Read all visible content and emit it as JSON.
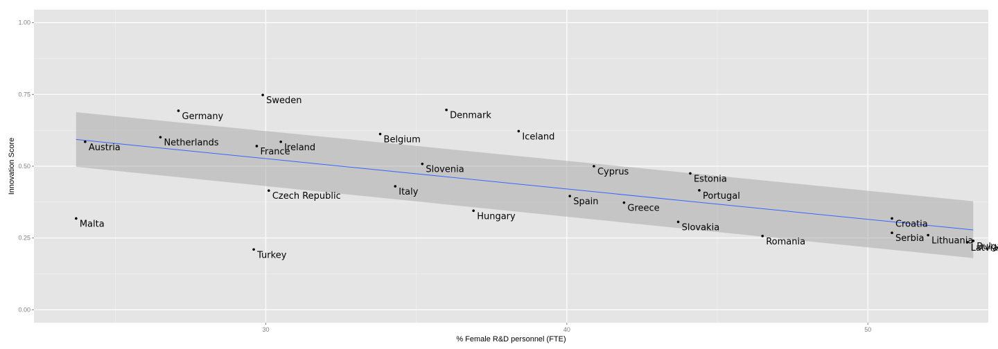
{
  "chart_data": {
    "type": "scatter",
    "xlabel": "% Female R&D personnel (FTE)",
    "ylabel": "Innovation Score",
    "xlim": [
      22.3,
      54.0
    ],
    "ylim": [
      -0.045,
      1.045
    ],
    "x_ticks": [
      30,
      40,
      50
    ],
    "y_ticks": [
      0.0,
      0.25,
      0.5,
      0.75,
      1.0
    ],
    "x_tick_labels": [
      "30",
      "40",
      "50"
    ],
    "y_tick_labels": [
      "0.00",
      "0.25",
      "0.50",
      "0.75",
      "1.00"
    ],
    "grid": true,
    "points": [
      {
        "label": "Sweden",
        "x": 29.9,
        "y": 0.748
      },
      {
        "label": "Germany",
        "x": 27.1,
        "y": 0.693
      },
      {
        "label": "Denmark",
        "x": 36.0,
        "y": 0.696
      },
      {
        "label": "Netherlands",
        "x": 26.5,
        "y": 0.601
      },
      {
        "label": "Belgium",
        "x": 33.8,
        "y": 0.612
      },
      {
        "label": "Iceland",
        "x": 38.4,
        "y": 0.622
      },
      {
        "label": "Austria",
        "x": 24.0,
        "y": 0.585
      },
      {
        "label": "France",
        "x": 29.7,
        "y": 0.57
      },
      {
        "label": "Ireland",
        "x": 30.5,
        "y": 0.585
      },
      {
        "label": "Slovenia",
        "x": 35.2,
        "y": 0.508
      },
      {
        "label": "Cyprus",
        "x": 40.9,
        "y": 0.5
      },
      {
        "label": "Estonia",
        "x": 44.1,
        "y": 0.475
      },
      {
        "label": "Czech Republic",
        "x": 30.1,
        "y": 0.415
      },
      {
        "label": "Italy",
        "x": 34.3,
        "y": 0.43
      },
      {
        "label": "Portugal",
        "x": 44.4,
        "y": 0.416
      },
      {
        "label": "Spain",
        "x": 40.1,
        "y": 0.396
      },
      {
        "label": "Greece",
        "x": 41.9,
        "y": 0.373
      },
      {
        "label": "Hungary",
        "x": 36.9,
        "y": 0.345
      },
      {
        "label": "Slovakia",
        "x": 43.7,
        "y": 0.306
      },
      {
        "label": "Malta",
        "x": 23.7,
        "y": 0.318
      },
      {
        "label": "Romania",
        "x": 46.5,
        "y": 0.257
      },
      {
        "label": "Turkey",
        "x": 29.6,
        "y": 0.21
      },
      {
        "label": "Croatia",
        "x": 50.8,
        "y": 0.318
      },
      {
        "label": "Serbia",
        "x": 50.8,
        "y": 0.268
      },
      {
        "label": "Lithuania",
        "x": 52.0,
        "y": 0.26
      },
      {
        "label": "Latvia",
        "x": 53.3,
        "y": 0.235
      },
      {
        "label": "Bulgaria",
        "x": 53.5,
        "y": 0.24
      }
    ],
    "fit": {
      "type": "linear",
      "x": [
        23.7,
        53.5
      ],
      "y": [
        0.593,
        0.278
      ],
      "ci_lower": [
        0.498,
        0.18
      ],
      "ci_upper": [
        0.688,
        0.378
      ]
    },
    "colors": {
      "panel": "#e5e5e5",
      "grid_major": "#ffffff",
      "grid_minor": "#f2f2f2",
      "point": "#000000",
      "fit_line": "#3366ff",
      "ribbon": "#a6a6a6",
      "tick_text": "#7f7f7f"
    }
  }
}
